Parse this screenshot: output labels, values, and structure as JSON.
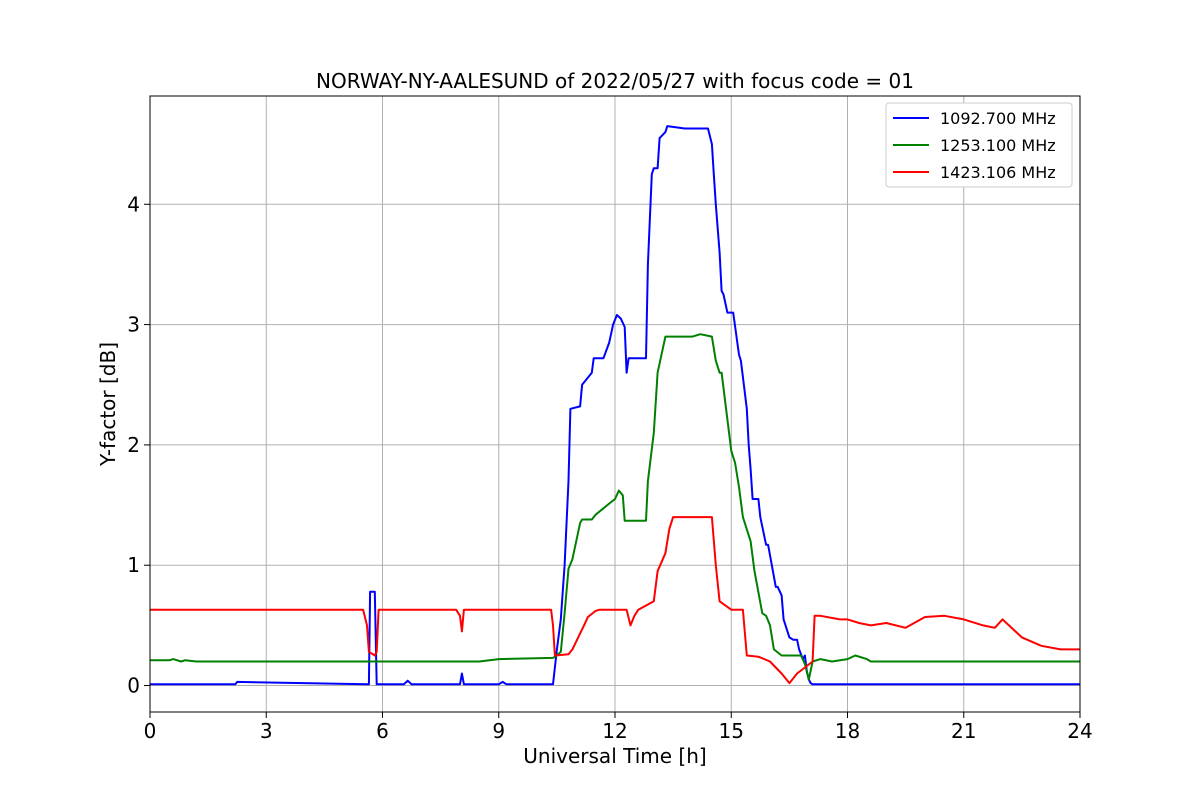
{
  "chart_data": {
    "type": "line",
    "title": "NORWAY-NY-AALESUND of 2022/05/27 with focus code = 01",
    "xlabel": "Universal Time [h]",
    "ylabel": "Y-factor [dB]",
    "xlim": [
      0,
      24
    ],
    "ylim": [
      -0.22,
      4.9
    ],
    "xticks": [
      0,
      3,
      6,
      9,
      12,
      15,
      18,
      21,
      24
    ],
    "yticks": [
      0,
      1,
      2,
      3,
      4
    ],
    "grid": true,
    "legend_position": "top-right",
    "series": [
      {
        "name": "1092.700 MHz",
        "color": "#0000ff",
        "x": [
          0,
          2.2,
          2.25,
          5.6,
          5.65,
          5.68,
          5.8,
          5.85,
          5.9,
          6.55,
          6.65,
          6.75,
          8.0,
          8.05,
          8.1,
          9.0,
          9.1,
          9.2,
          10.4,
          10.5,
          10.6,
          10.7,
          10.8,
          10.85,
          11.1,
          11.15,
          11.4,
          11.45,
          11.6,
          11.7,
          11.85,
          11.95,
          12.05,
          12.15,
          12.25,
          12.3,
          12.35,
          12.4,
          12.5,
          12.8,
          12.85,
          12.95,
          13.0,
          13.1,
          13.15,
          13.3,
          13.35,
          13.8,
          14.2,
          14.4,
          14.5,
          14.55,
          14.6,
          14.7,
          14.75,
          14.8,
          14.9,
          15.0,
          15.05,
          15.2,
          15.25,
          15.4,
          15.45,
          15.5,
          15.55,
          15.7,
          15.75,
          15.9,
          15.95,
          16.15,
          16.2,
          16.3,
          16.35,
          16.5,
          16.6,
          16.7,
          16.75,
          16.85,
          16.9,
          16.95,
          17.0,
          17.05,
          17.1,
          17.5,
          24
        ],
        "y": [
          0.01,
          0.01,
          0.03,
          0.01,
          0.01,
          0.78,
          0.78,
          0.01,
          0.01,
          0.01,
          0.04,
          0.01,
          0.01,
          0.1,
          0.01,
          0.01,
          0.03,
          0.01,
          0.01,
          0.3,
          0.55,
          1.0,
          1.7,
          2.3,
          2.32,
          2.5,
          2.6,
          2.72,
          2.72,
          2.72,
          2.85,
          3.0,
          3.08,
          3.05,
          2.98,
          2.6,
          2.72,
          2.72,
          2.72,
          2.72,
          3.5,
          4.25,
          4.3,
          4.3,
          4.55,
          4.6,
          4.65,
          4.63,
          4.63,
          4.63,
          4.5,
          4.25,
          4.0,
          3.6,
          3.28,
          3.25,
          3.1,
          3.1,
          3.1,
          2.75,
          2.7,
          2.3,
          2.0,
          1.8,
          1.55,
          1.55,
          1.4,
          1.17,
          1.17,
          0.82,
          0.82,
          0.75,
          0.55,
          0.4,
          0.38,
          0.38,
          0.3,
          0.22,
          0.25,
          0.12,
          0.05,
          0.02,
          0.01,
          0.01,
          0.01
        ]
      },
      {
        "name": "1253.100 MHz",
        "color": "#008000",
        "x": [
          0,
          0.5,
          0.6,
          0.8,
          0.9,
          1.2,
          8.5,
          9.0,
          10.4,
          10.5,
          10.6,
          10.7,
          10.8,
          10.9,
          11.1,
          11.15,
          11.4,
          11.5,
          11.8,
          12.0,
          12.1,
          12.2,
          12.25,
          12.8,
          12.85,
          13.0,
          13.1,
          13.2,
          13.3,
          14.0,
          14.2,
          14.5,
          14.6,
          14.7,
          14.75,
          15.0,
          15.1,
          15.2,
          15.3,
          15.5,
          15.6,
          15.8,
          15.9,
          16.0,
          16.1,
          16.3,
          16.8,
          16.9,
          17.0,
          17.1,
          17.3,
          17.6,
          18.0,
          18.2,
          18.5,
          18.6,
          24
        ],
        "y": [
          0.21,
          0.21,
          0.22,
          0.2,
          0.21,
          0.2,
          0.2,
          0.22,
          0.23,
          0.25,
          0.28,
          0.6,
          0.97,
          1.05,
          1.35,
          1.38,
          1.38,
          1.42,
          1.5,
          1.55,
          1.62,
          1.58,
          1.37,
          1.37,
          1.7,
          2.1,
          2.6,
          2.75,
          2.9,
          2.9,
          2.92,
          2.9,
          2.7,
          2.6,
          2.6,
          1.95,
          1.85,
          1.65,
          1.4,
          1.2,
          0.95,
          0.6,
          0.58,
          0.5,
          0.3,
          0.25,
          0.25,
          0.18,
          0.05,
          0.2,
          0.22,
          0.2,
          0.22,
          0.25,
          0.22,
          0.2,
          0.2
        ]
      },
      {
        "name": "1423.106 MHz",
        "color": "#ff0000",
        "x": [
          0,
          5.5,
          5.6,
          5.65,
          5.8,
          5.85,
          5.9,
          7.9,
          8.0,
          8.05,
          8.1,
          10.35,
          10.4,
          10.45,
          10.8,
          10.9,
          11.2,
          11.3,
          11.5,
          11.6,
          12.3,
          12.4,
          12.5,
          12.6,
          13.0,
          13.1,
          13.3,
          13.4,
          13.5,
          14.5,
          14.6,
          14.7,
          15.0,
          15.1,
          15.3,
          15.4,
          15.7,
          16.0,
          16.3,
          16.5,
          16.7,
          16.9,
          17.1,
          17.15,
          17.3,
          17.8,
          18.0,
          18.3,
          18.6,
          19.0,
          19.5,
          20.0,
          20.5,
          21.0,
          21.5,
          21.8,
          22.0,
          22.5,
          23.0,
          23.5,
          24
        ],
        "y": [
          0.63,
          0.63,
          0.5,
          0.28,
          0.25,
          0.28,
          0.63,
          0.63,
          0.58,
          0.45,
          0.63,
          0.63,
          0.5,
          0.25,
          0.26,
          0.3,
          0.5,
          0.57,
          0.62,
          0.63,
          0.63,
          0.5,
          0.58,
          0.63,
          0.7,
          0.95,
          1.1,
          1.3,
          1.4,
          1.4,
          1.0,
          0.7,
          0.63,
          0.63,
          0.63,
          0.25,
          0.24,
          0.2,
          0.1,
          0.02,
          0.1,
          0.15,
          0.2,
          0.58,
          0.58,
          0.55,
          0.55,
          0.52,
          0.5,
          0.52,
          0.48,
          0.57,
          0.58,
          0.55,
          0.5,
          0.48,
          0.55,
          0.4,
          0.33,
          0.3,
          0.3
        ]
      }
    ]
  }
}
